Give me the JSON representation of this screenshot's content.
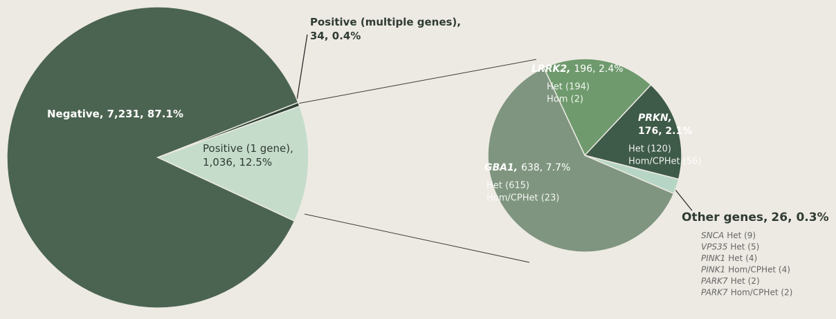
{
  "chart_data": [
    {
      "type": "pie",
      "categories": [
        "Negative,",
        "Positive (multiple genes),",
        "Positive (1 gene),"
      ],
      "values": [
        7231,
        34,
        1036
      ],
      "value_labels": [
        "7,231, 87.1%",
        "34, 0.4%",
        "1,036, 12.5%"
      ],
      "colors": [
        "#4b6451",
        "#2c4234",
        "#c6dccb"
      ]
    },
    {
      "type": "pie",
      "categories": [
        "LRRK2,",
        "PRKN,",
        "Other genes,",
        "GBA1,"
      ],
      "values": [
        196,
        176,
        26,
        638
      ],
      "value_labels": [
        "196, 2.4%",
        "176, 2.1%",
        "26, 0.3%",
        "638, 7.7%"
      ],
      "colors": [
        "#6f9a6d",
        "#3e5a48",
        "#b7d5c4",
        "#7f957f"
      ],
      "details": [
        [
          "Het (194)",
          "Hom (2)"
        ],
        [
          "Het (120)",
          "Hom/CPHet (56)"
        ],
        [],
        [
          "Het (615)",
          "Hom/CPHet (23)"
        ]
      ],
      "other_genes": [
        {
          "gene": "SNCA",
          "detail": "Het (9)"
        },
        {
          "gene": "VPS35",
          "detail": "Het (5)"
        },
        {
          "gene": "PINK1",
          "detail": "Het (4)"
        },
        {
          "gene": "PINK1",
          "detail": "Hom/CPHet (4)"
        },
        {
          "gene": "PARK7",
          "detail": "Het (2)"
        },
        {
          "gene": "PARK7",
          "detail": "Hom/CPHet (2)"
        }
      ]
    }
  ]
}
